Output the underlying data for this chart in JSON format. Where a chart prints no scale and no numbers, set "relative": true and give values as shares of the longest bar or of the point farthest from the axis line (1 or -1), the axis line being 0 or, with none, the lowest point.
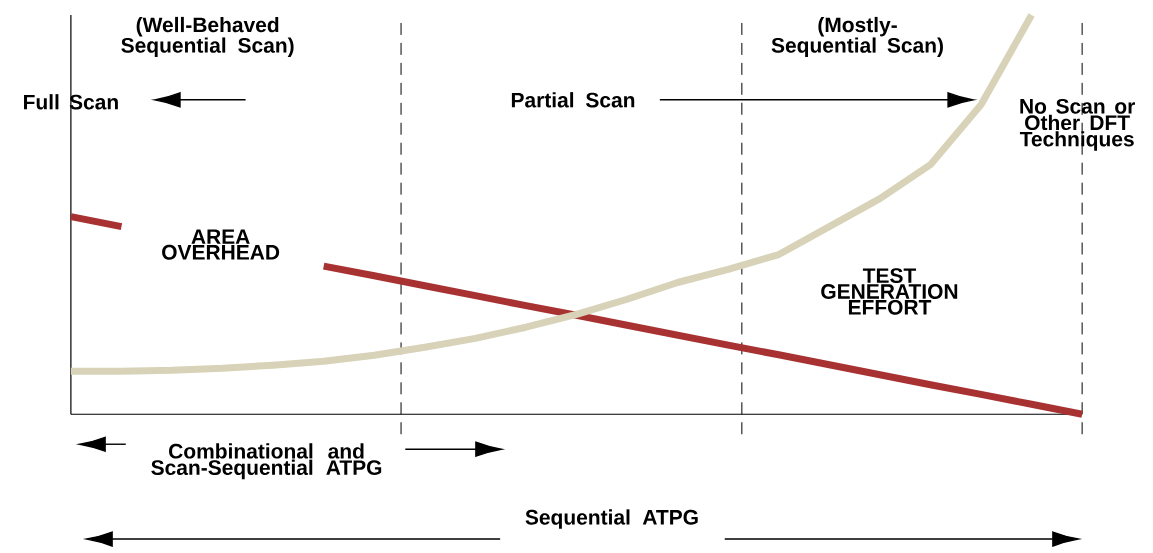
{
  "chart_data": {
    "type": "line",
    "relative": true,
    "categories": [
      null,
      null,
      null,
      null,
      null,
      null,
      null,
      null,
      null,
      null,
      null,
      null,
      null,
      null,
      null,
      null,
      null,
      null,
      null,
      null,
      null
    ],
    "series": [
      {
        "name": "AREA OVERHEAD",
        "color": "#a83232",
        "values": [
          0.495,
          0.47,
          null,
          null,
          null,
          0.371,
          0.347,
          0.322,
          0.297,
          0.272,
          0.248,
          0.223,
          0.198,
          0.173,
          0.149,
          0.124,
          0.099,
          0.074,
          0.05,
          0.025,
          0
        ]
      },
      {
        "name": "TEST GENERATION EFFORT",
        "color": "#d8d3b8",
        "values": [
          0.108,
          0.108,
          0.11,
          0.115,
          0.123,
          0.133,
          0.148,
          0.168,
          0.19,
          0.218,
          0.25,
          0.288,
          0.33,
          0.363,
          0.4,
          0.47,
          0.54,
          0.625,
          0.775,
          1.0,
          null
        ]
      }
    ],
    "annotations": [
      "(Well-Behaved Sequential Scan)",
      "(Mostly-Sequential Scan)",
      "Full Scan",
      "Partial Scan",
      "No Scan or Other DFT Techniques",
      "Combinational and Scan-Sequential ATPG",
      "Sequential ATPG"
    ],
    "marker": "none"
  }
}
